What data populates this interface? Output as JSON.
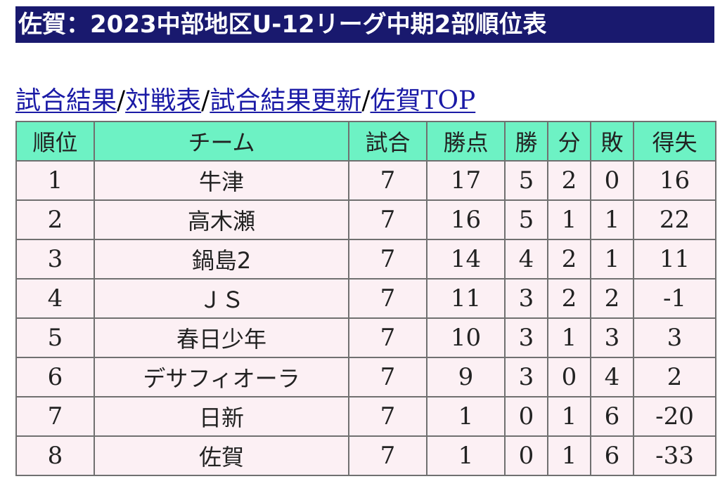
{
  "title": "佐賀：2023中部地区U-12リーグ中期2部順位表",
  "nav": {
    "links": [
      "試合結果",
      "対戦表",
      "試合結果更新",
      "佐賀TOP"
    ],
    "separator": "/"
  },
  "table": {
    "headers": [
      "順位",
      "チーム",
      "試合",
      "勝点",
      "勝",
      "分",
      "敗",
      "得失"
    ],
    "rows": [
      [
        "1",
        "牛津",
        "7",
        "17",
        "5",
        "2",
        "0",
        "16"
      ],
      [
        "2",
        "高木瀬",
        "7",
        "16",
        "5",
        "1",
        "1",
        "22"
      ],
      [
        "3",
        "鍋島2",
        "7",
        "14",
        "4",
        "2",
        "1",
        "11"
      ],
      [
        "4",
        "ＪＳ",
        "7",
        "11",
        "3",
        "2",
        "2",
        "-1"
      ],
      [
        "5",
        "春日少年",
        "7",
        "10",
        "3",
        "1",
        "3",
        "3"
      ],
      [
        "6",
        "デサフィオーラ",
        "7",
        "9",
        "3",
        "0",
        "4",
        "2"
      ],
      [
        "7",
        "日新",
        "7",
        "1",
        "0",
        "1",
        "6",
        "-20"
      ],
      [
        "8",
        "佐賀",
        "7",
        "1",
        "0",
        "1",
        "6",
        "-33"
      ]
    ]
  },
  "colors": {
    "title_background": "#19196e",
    "header_background": "#6df2c4",
    "row_background": "#fcf0f4",
    "link": "#1a1aa6"
  }
}
